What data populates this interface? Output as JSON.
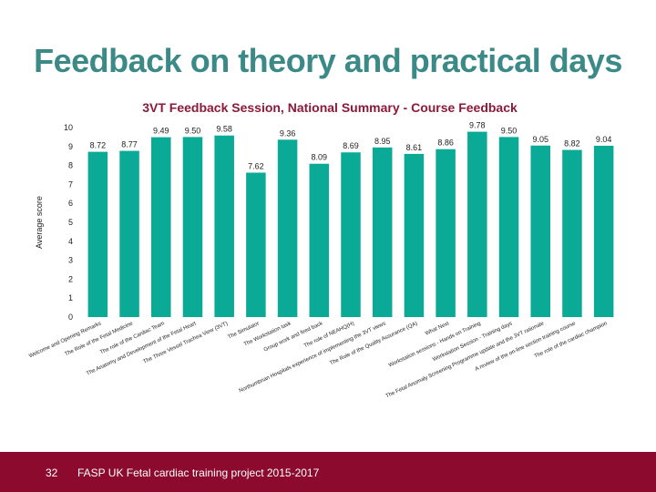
{
  "slide": {
    "title": "Feedback on theory and practical days"
  },
  "chart_data": {
    "type": "bar",
    "title": "3VT Feedback Session, National Summary - Course Feedback",
    "ylabel": "Average score",
    "xlabel": "",
    "ylim": [
      0,
      10
    ],
    "yticks": [
      0,
      1,
      2,
      3,
      4,
      5,
      6,
      7,
      8,
      9,
      10
    ],
    "grid": false,
    "bar_color": "#0aaa96",
    "title_color": "#8b1a3a",
    "categories": [
      "Welcome and Opening Remarks",
      "The Role of the Fetal Medicine",
      "The role of the Cardiac Team",
      "The Anatomy and Development of the Fetal Heart",
      "The Three Vessel Trachea View (3VT)",
      "The Simulator",
      "The Workstation task",
      "Group work and feed back",
      "The role of NEAHQ(H)",
      "Northumbrian Hospitals experience of implementing the 3VT views",
      "The Role of the Quality Assurance (QA)",
      "What Next",
      "Workstation sessions - Hands on Training",
      "Workstation Session - Training days",
      "The Fetal Anomaly Screening Programme update and the 3VT rationale",
      "A review of the on-line section training course",
      "The role of the cardiac champion"
    ],
    "values": [
      8.72,
      8.77,
      9.49,
      9.5,
      9.58,
      7.62,
      9.36,
      8.09,
      8.69,
      8.95,
      8.61,
      8.86,
      9.78,
      9.5,
      9.05,
      8.82,
      9.04
    ],
    "value_labels": [
      "8.72",
      "8.77",
      "9.49",
      "9.50",
      "9.58",
      "7.62",
      "9.36",
      "8.09",
      "8.69",
      "8.95",
      "8.61",
      "8.86",
      "9.78",
      "9.50",
      "9.05",
      "8.82",
      "9.04"
    ]
  },
  "footer": {
    "page_number": "32",
    "text": "FASP UK Fetal cardiac training project 2015-2017"
  }
}
